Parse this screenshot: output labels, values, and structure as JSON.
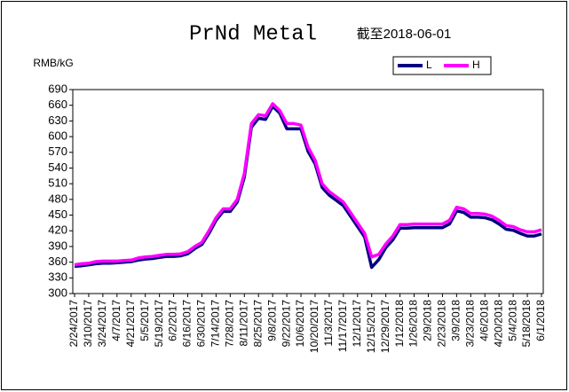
{
  "chart_data": {
    "type": "line",
    "title": "PrNd Metal",
    "subtitle": "截至2018-06-01",
    "y_label": "RMB/kG",
    "categories": [
      "2/24/2017",
      null,
      "3/10/2017",
      null,
      "3/24/2017",
      null,
      "4/7/2017",
      null,
      "4/21/2017",
      null,
      "5/5/2017",
      null,
      "5/19/2017",
      null,
      "6/2/2017",
      null,
      "6/16/2017",
      null,
      "6/30/2017",
      null,
      "7/14/2017",
      null,
      "7/28/2017",
      null,
      "8/11/2017",
      null,
      "8/25/2017",
      null,
      "9/8/2017",
      null,
      "9/22/2017",
      null,
      "10/6/2017",
      null,
      "10/20/2017",
      null,
      "11/3/2017",
      null,
      "11/17/2017",
      null,
      "12/1/2017",
      null,
      "12/15/2017",
      null,
      "12/29/2017",
      null,
      "1/12/2018",
      null,
      "1/26/2018",
      null,
      "2/9/2018",
      null,
      "2/23/2018",
      null,
      "3/9/2018",
      null,
      "3/23/2018",
      null,
      "4/6/2018",
      null,
      "4/20/2018",
      null,
      "5/4/2018",
      null,
      "5/18/2018",
      null,
      "6/1/2018"
    ],
    "series": [
      {
        "name": "L",
        "color": "#000080",
        "values": [
          352,
          353,
          355,
          357,
          358,
          358,
          359,
          360,
          361,
          364,
          366,
          367,
          369,
          371,
          371,
          372,
          376,
          386,
          394,
          415,
          440,
          457,
          457,
          475,
          523,
          618,
          635,
          633,
          658,
          645,
          615,
          615,
          615,
          572,
          548,
          503,
          488,
          478,
          468,
          448,
          428,
          408,
          350,
          365,
          388,
          403,
          425,
          425,
          426,
          426,
          426,
          426,
          426,
          433,
          458,
          455,
          446,
          446,
          445,
          441,
          433,
          423,
          421,
          415,
          410,
          410,
          414
        ]
      },
      {
        "name": "H",
        "color": "#ff00ff",
        "values": [
          355,
          357,
          358,
          361,
          362,
          362,
          362,
          363,
          364,
          368,
          370,
          371,
          373,
          375,
          375,
          376,
          380,
          390,
          398,
          420,
          445,
          462,
          462,
          480,
          530,
          625,
          642,
          640,
          663,
          650,
          625,
          625,
          622,
          580,
          555,
          510,
          495,
          485,
          475,
          455,
          435,
          415,
          370,
          375,
          395,
          410,
          432,
          432,
          433,
          433,
          433,
          433,
          433,
          440,
          465,
          462,
          453,
          453,
          452,
          448,
          440,
          430,
          428,
          422,
          418,
          418,
          422
        ]
      }
    ],
    "ylim": [
      300,
      690
    ],
    "yticks": [
      300,
      330,
      360,
      390,
      420,
      450,
      480,
      510,
      540,
      570,
      600,
      630,
      660,
      690
    ],
    "grid": false
  }
}
